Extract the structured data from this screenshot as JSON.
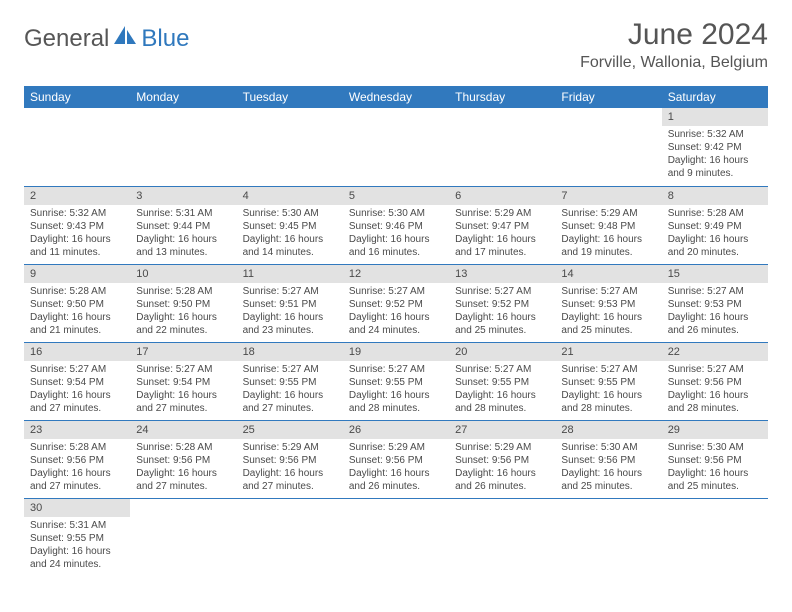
{
  "brand": {
    "first": "General",
    "second": "Blue"
  },
  "title": "June 2024",
  "location": "Forville, Wallonia, Belgium",
  "colors": {
    "header_bg": "#3179be",
    "header_fg": "#ffffff",
    "daynum_bg": "#e2e2e2",
    "text": "#4a4a4a",
    "border": "#3179be",
    "logo_blue": "#2f78bd",
    "logo_gray": "#565656"
  },
  "weekdays": [
    "Sunday",
    "Monday",
    "Tuesday",
    "Wednesday",
    "Thursday",
    "Friday",
    "Saturday"
  ],
  "weeks": [
    [
      null,
      null,
      null,
      null,
      null,
      null,
      {
        "n": "1",
        "sr": "5:32 AM",
        "ss": "9:42 PM",
        "dl": "16 hours and 9 minutes."
      }
    ],
    [
      {
        "n": "2",
        "sr": "5:32 AM",
        "ss": "9:43 PM",
        "dl": "16 hours and 11 minutes."
      },
      {
        "n": "3",
        "sr": "5:31 AM",
        "ss": "9:44 PM",
        "dl": "16 hours and 13 minutes."
      },
      {
        "n": "4",
        "sr": "5:30 AM",
        "ss": "9:45 PM",
        "dl": "16 hours and 14 minutes."
      },
      {
        "n": "5",
        "sr": "5:30 AM",
        "ss": "9:46 PM",
        "dl": "16 hours and 16 minutes."
      },
      {
        "n": "6",
        "sr": "5:29 AM",
        "ss": "9:47 PM",
        "dl": "16 hours and 17 minutes."
      },
      {
        "n": "7",
        "sr": "5:29 AM",
        "ss": "9:48 PM",
        "dl": "16 hours and 19 minutes."
      },
      {
        "n": "8",
        "sr": "5:28 AM",
        "ss": "9:49 PM",
        "dl": "16 hours and 20 minutes."
      }
    ],
    [
      {
        "n": "9",
        "sr": "5:28 AM",
        "ss": "9:50 PM",
        "dl": "16 hours and 21 minutes."
      },
      {
        "n": "10",
        "sr": "5:28 AM",
        "ss": "9:50 PM",
        "dl": "16 hours and 22 minutes."
      },
      {
        "n": "11",
        "sr": "5:27 AM",
        "ss": "9:51 PM",
        "dl": "16 hours and 23 minutes."
      },
      {
        "n": "12",
        "sr": "5:27 AM",
        "ss": "9:52 PM",
        "dl": "16 hours and 24 minutes."
      },
      {
        "n": "13",
        "sr": "5:27 AM",
        "ss": "9:52 PM",
        "dl": "16 hours and 25 minutes."
      },
      {
        "n": "14",
        "sr": "5:27 AM",
        "ss": "9:53 PM",
        "dl": "16 hours and 25 minutes."
      },
      {
        "n": "15",
        "sr": "5:27 AM",
        "ss": "9:53 PM",
        "dl": "16 hours and 26 minutes."
      }
    ],
    [
      {
        "n": "16",
        "sr": "5:27 AM",
        "ss": "9:54 PM",
        "dl": "16 hours and 27 minutes."
      },
      {
        "n": "17",
        "sr": "5:27 AM",
        "ss": "9:54 PM",
        "dl": "16 hours and 27 minutes."
      },
      {
        "n": "18",
        "sr": "5:27 AM",
        "ss": "9:55 PM",
        "dl": "16 hours and 27 minutes."
      },
      {
        "n": "19",
        "sr": "5:27 AM",
        "ss": "9:55 PM",
        "dl": "16 hours and 28 minutes."
      },
      {
        "n": "20",
        "sr": "5:27 AM",
        "ss": "9:55 PM",
        "dl": "16 hours and 28 minutes."
      },
      {
        "n": "21",
        "sr": "5:27 AM",
        "ss": "9:55 PM",
        "dl": "16 hours and 28 minutes."
      },
      {
        "n": "22",
        "sr": "5:27 AM",
        "ss": "9:56 PM",
        "dl": "16 hours and 28 minutes."
      }
    ],
    [
      {
        "n": "23",
        "sr": "5:28 AM",
        "ss": "9:56 PM",
        "dl": "16 hours and 27 minutes."
      },
      {
        "n": "24",
        "sr": "5:28 AM",
        "ss": "9:56 PM",
        "dl": "16 hours and 27 minutes."
      },
      {
        "n": "25",
        "sr": "5:29 AM",
        "ss": "9:56 PM",
        "dl": "16 hours and 27 minutes."
      },
      {
        "n": "26",
        "sr": "5:29 AM",
        "ss": "9:56 PM",
        "dl": "16 hours and 26 minutes."
      },
      {
        "n": "27",
        "sr": "5:29 AM",
        "ss": "9:56 PM",
        "dl": "16 hours and 26 minutes."
      },
      {
        "n": "28",
        "sr": "5:30 AM",
        "ss": "9:56 PM",
        "dl": "16 hours and 25 minutes."
      },
      {
        "n": "29",
        "sr": "5:30 AM",
        "ss": "9:56 PM",
        "dl": "16 hours and 25 minutes."
      }
    ],
    [
      {
        "n": "30",
        "sr": "5:31 AM",
        "ss": "9:55 PM",
        "dl": "16 hours and 24 minutes."
      },
      null,
      null,
      null,
      null,
      null,
      null
    ]
  ],
  "labels": {
    "sunrise": "Sunrise: ",
    "sunset": "Sunset: ",
    "daylight": "Daylight: "
  }
}
